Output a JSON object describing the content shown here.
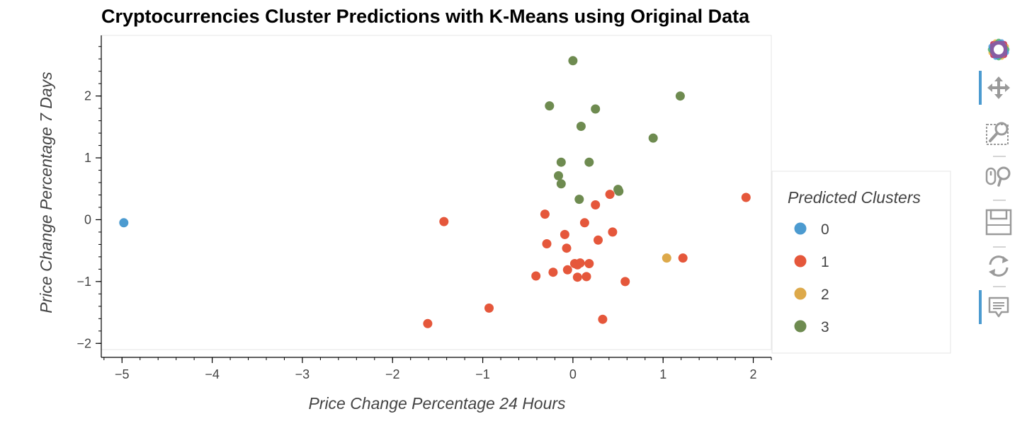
{
  "chart_data": {
    "type": "scatter",
    "title": "Cryptocurrencies Cluster Predictions with K-Means using Original Data",
    "xlabel": "Price Change Percentage 24 Hours",
    "ylabel": "Price Change Percentage 7 Days",
    "xlim": [
      -5.23,
      2.2
    ],
    "ylim": [
      -2.1,
      2.98
    ],
    "x_ticks": [
      -5,
      -4,
      -3,
      -2,
      -1,
      0,
      1,
      2
    ],
    "y_ticks": [
      -2,
      -1,
      0,
      1,
      2
    ],
    "x_tick_labels": [
      "−5",
      "−4",
      "−3",
      "−2",
      "−1",
      "0",
      "1",
      "2"
    ],
    "y_tick_labels": [
      "−2",
      "−1",
      "0",
      "1",
      "2"
    ],
    "grid": false,
    "legend": {
      "title": "Predicted Clusters",
      "placement": "right",
      "entries": [
        "0",
        "1",
        "2",
        "3"
      ]
    },
    "series": [
      {
        "name": "0",
        "color": "#4c9bd0",
        "points": [
          [
            -4.98,
            -0.05
          ]
        ]
      },
      {
        "name": "1",
        "color": "#e5573b",
        "points": [
          [
            -1.43,
            -0.03
          ],
          [
            -1.61,
            -1.68
          ],
          [
            -0.93,
            -1.43
          ],
          [
            -0.41,
            -0.91
          ],
          [
            -0.31,
            0.09
          ],
          [
            -0.29,
            -0.39
          ],
          [
            -0.22,
            -0.85
          ],
          [
            -0.09,
            -0.24
          ],
          [
            -0.07,
            -0.46
          ],
          [
            -0.06,
            -0.81
          ],
          [
            0.02,
            -0.71
          ],
          [
            0.05,
            -0.73
          ],
          [
            0.05,
            -0.93
          ],
          [
            0.08,
            -0.7
          ],
          [
            0.13,
            -0.05
          ],
          [
            0.15,
            -0.92
          ],
          [
            0.18,
            -0.71
          ],
          [
            0.25,
            0.24
          ],
          [
            0.28,
            -0.33
          ],
          [
            0.33,
            -1.61
          ],
          [
            0.41,
            0.41
          ],
          [
            0.44,
            -0.2
          ],
          [
            0.58,
            -1.0
          ],
          [
            1.22,
            -0.62
          ],
          [
            1.92,
            0.36
          ]
        ]
      },
      {
        "name": "2",
        "color": "#dda94a",
        "points": [
          [
            1.04,
            -0.62
          ]
        ]
      },
      {
        "name": "3",
        "color": "#6e8b50",
        "points": [
          [
            0.0,
            2.57
          ],
          [
            -0.26,
            1.84
          ],
          [
            0.25,
            1.79
          ],
          [
            1.19,
            2.0
          ],
          [
            0.09,
            1.51
          ],
          [
            0.89,
            1.32
          ],
          [
            -0.13,
            0.93
          ],
          [
            0.18,
            0.93
          ],
          [
            -0.16,
            0.71
          ],
          [
            -0.13,
            0.58
          ],
          [
            0.07,
            0.33
          ],
          [
            0.5,
            0.49
          ],
          [
            0.51,
            0.46
          ]
        ]
      }
    ]
  },
  "toolbar": {
    "items": [
      {
        "icon": "bokeh-logo-icon",
        "label": "Bokeh"
      },
      {
        "icon": "pan-icon",
        "label": "Pan"
      },
      {
        "icon": "box-zoom-icon",
        "label": "Box Zoom"
      },
      {
        "icon": "wheel-zoom-icon",
        "label": "Wheel Zoom"
      },
      {
        "icon": "save-icon",
        "label": "Save"
      },
      {
        "icon": "reset-icon",
        "label": "Reset"
      },
      {
        "icon": "hover-icon",
        "label": "Hover"
      }
    ]
  }
}
